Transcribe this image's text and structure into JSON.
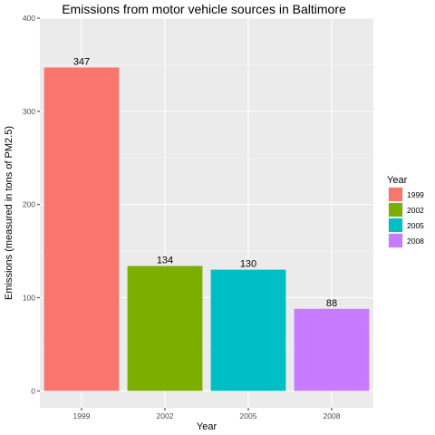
{
  "chart_data": {
    "type": "bar",
    "title": "Emissions from motor vehicle sources in Baltimore",
    "xlabel": "Year",
    "ylabel": "Emissions (measured in tons of PM2.5)",
    "categories": [
      "1999",
      "2002",
      "2005",
      "2008"
    ],
    "values": [
      347,
      134,
      130,
      88
    ],
    "data_labels": [
      "347",
      "134",
      "130",
      "88"
    ],
    "colors": [
      "#F8766D",
      "#7CAE00",
      "#00BFC4",
      "#C77CFF"
    ],
    "ylim": [
      -18.2,
      400
    ],
    "yticks": [
      0,
      100,
      200,
      300,
      400
    ],
    "grid": true,
    "legend": {
      "title": "Year",
      "position": "right",
      "entries": [
        "1999",
        "2002",
        "2005",
        "2008"
      ]
    }
  }
}
